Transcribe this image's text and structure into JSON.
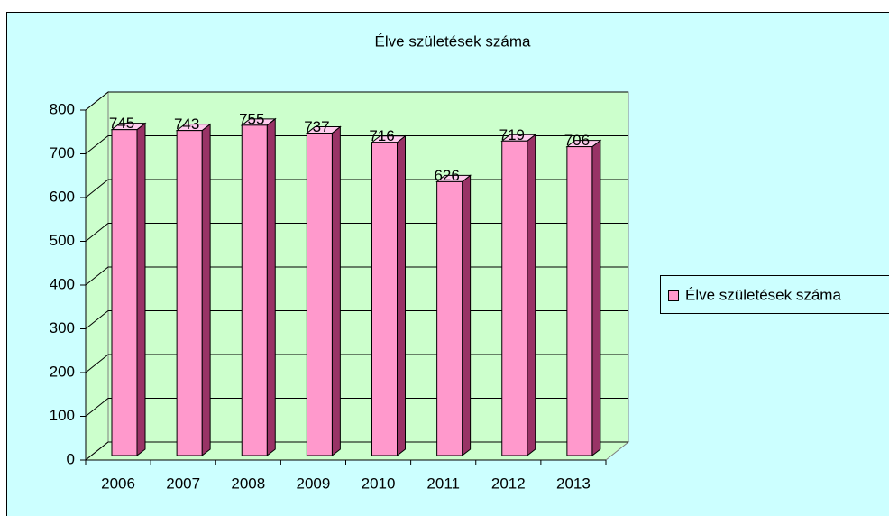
{
  "chart_data": {
    "type": "bar",
    "title": "Élve születések száma",
    "categories": [
      "2006",
      "2007",
      "2008",
      "2009",
      "2010",
      "2011",
      "2012",
      "2013"
    ],
    "series": [
      {
        "name": "Élve születések száma",
        "color": "#ff99cc",
        "values": [
          745,
          743,
          755,
          737,
          716,
          626,
          719,
          706
        ]
      }
    ],
    "ylim": [
      0,
      800
    ],
    "yticks": [
      0,
      100,
      200,
      300,
      400,
      500,
      600,
      700,
      800
    ],
    "grid": true,
    "legend": "right",
    "three_d": true
  }
}
